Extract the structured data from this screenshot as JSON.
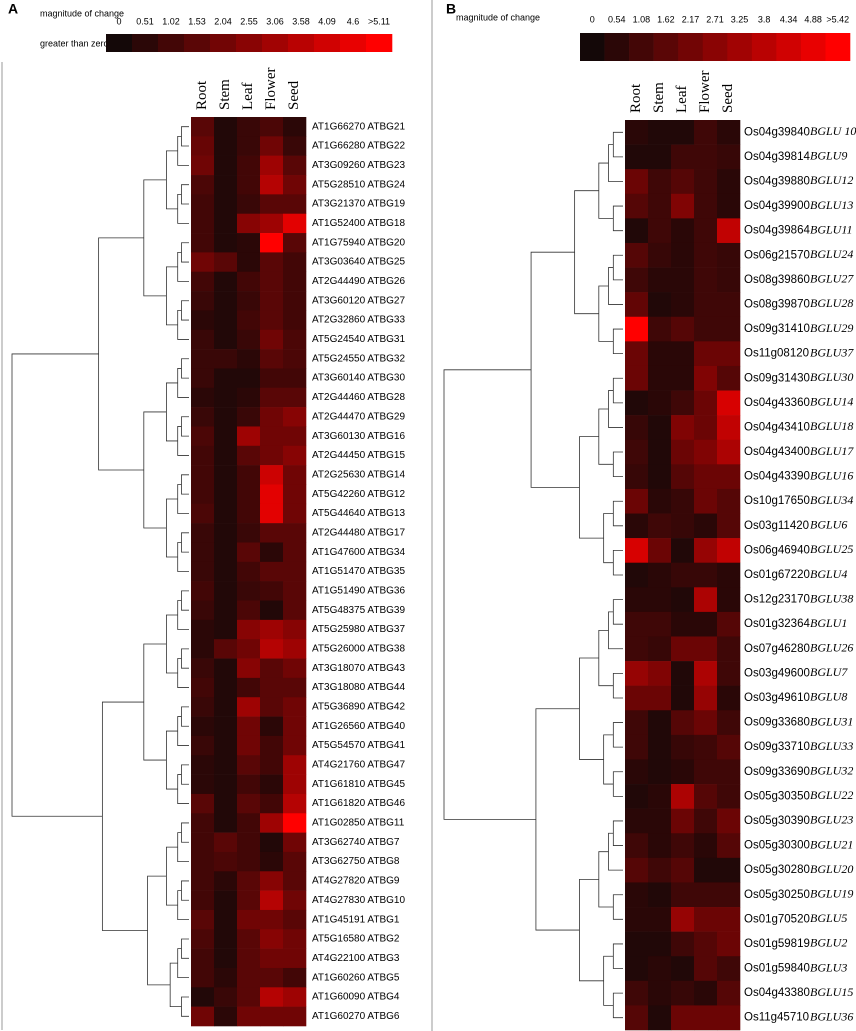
{
  "chart_data": [
    {
      "type": "heatmap",
      "panel_label": "A",
      "colorbar_title": "magnitude of change",
      "colorbar_note": "greater than zero",
      "zlim": [
        0,
        5.11
      ],
      "colorbar_ticks": [
        0,
        0.51,
        1.02,
        1.53,
        2.04,
        2.55,
        3.06,
        3.58,
        4.09,
        4.6,
        {
          "value": 5.11,
          "label": ">5.11"
        }
      ],
      "x": [
        "Root",
        "Stem",
        "Leaf",
        "Flower",
        "Seed"
      ],
      "rows": [
        "AT1G66270 ATBG21",
        "AT1G66280 ATBG22",
        "AT3G09260 ATBG23",
        "AT5G28510 ATBG24",
        "AT3G21370 ATBG19",
        "AT1G52400 ATBG18",
        "AT1G75940 ATBG20",
        "AT3G03640 ATBG25",
        "AT2G44490 ATBG26",
        "AT3G60120 ATBG27",
        "AT2G32860 ATBG33",
        "AT5G24540 ATBG31",
        "AT5G24550 ATBG32",
        "AT3G60140 ATBG30",
        "AT2G44460 ATBG28",
        "AT2G44470 ATBG29",
        "AT3G60130 ATBG16",
        "AT2G44450 ATBG15",
        "AT2G25630 ATBG14",
        "AT5G42260 ATBG12",
        "AT5G44640 ATBG13",
        "AT2G44480 ATBG17",
        "AT1G47600 ATBG34",
        "AT1G51470 ATBG35",
        "AT1G51490 ATBG36",
        "AT5G48375 ATBG39",
        "AT5G25980 ATBG37",
        "AT5G26000 ATBG38",
        "AT3G18070 ATBG43",
        "AT3G18080 ATBG44",
        "AT5G36890 ATBG42",
        "AT1G26560 ATBG40",
        "AT5G54570 ATBG41",
        "AT4G21760 ATBG47",
        "AT1G61810 ATBG45",
        "AT1G61820 ATBG46",
        "AT1G02850 ATBG11",
        "AT3G62740 ATBG7",
        "AT3G62750 ATBG8",
        "AT4G27820 ATBG9",
        "AT4G27830 ATBG10",
        "AT1G45191 ATBG1",
        "AT5G16580 ATBG2",
        "AT4G22100 ATBG3",
        "AT1G60260 ATBG5",
        "AT1G60090 ATBG4",
        "AT1G60270 ATBG6"
      ],
      "values": [
        [
          1.5,
          0.3,
          0.8,
          1.2,
          0.5
        ],
        [
          1.8,
          0.3,
          0.8,
          2,
          0.8
        ],
        [
          2,
          0.3,
          1,
          3,
          1.5
        ],
        [
          1.2,
          0.3,
          1,
          3.5,
          2
        ],
        [
          1,
          0.3,
          0.8,
          1.5,
          1.5
        ],
        [
          1,
          0.3,
          2.5,
          3,
          4.5
        ],
        [
          1,
          0.3,
          0.5,
          5.11,
          1.5
        ],
        [
          2,
          1.5,
          0.5,
          1.5,
          1
        ],
        [
          1,
          0.3,
          1,
          1.5,
          1
        ],
        [
          0.8,
          0.3,
          0.8,
          1.5,
          1
        ],
        [
          0.5,
          0.3,
          1,
          1.5,
          1
        ],
        [
          0.8,
          0.3,
          0.8,
          2,
          1.2
        ],
        [
          0.8,
          0.8,
          0.5,
          1.5,
          1.2
        ],
        [
          0.8,
          0.3,
          0.3,
          1,
          1
        ],
        [
          0.5,
          0.3,
          0.5,
          1.5,
          1.5
        ],
        [
          0.8,
          0.3,
          0.8,
          2,
          2.5
        ],
        [
          1.2,
          0.3,
          3,
          2,
          2
        ],
        [
          1,
          0.3,
          1.5,
          2,
          2.5
        ],
        [
          1,
          0.3,
          1,
          4,
          2
        ],
        [
          1,
          0.3,
          1,
          4.5,
          2
        ],
        [
          1.2,
          0.3,
          1,
          4.5,
          2
        ],
        [
          0.8,
          0.3,
          0.8,
          1.5,
          1.5
        ],
        [
          0.8,
          0.3,
          1.5,
          0.5,
          1.5
        ],
        [
          0.8,
          0.3,
          1,
          1.5,
          1.5
        ],
        [
          1,
          0.3,
          0.8,
          1,
          1.5
        ],
        [
          0.8,
          0.3,
          1.2,
          0.3,
          1.5
        ],
        [
          0.5,
          0.3,
          2.5,
          3,
          2.5
        ],
        [
          0.5,
          1.5,
          2,
          3.5,
          3
        ],
        [
          0.8,
          0.3,
          2.5,
          1.5,
          2
        ],
        [
          1,
          0.3,
          1,
          1.5,
          1.5
        ],
        [
          0.8,
          0.3,
          3,
          1.5,
          2
        ],
        [
          0.5,
          0.3,
          2,
          0.5,
          2
        ],
        [
          0.8,
          0.3,
          2,
          1,
          2
        ],
        [
          0.5,
          0.3,
          1.5,
          1,
          3
        ],
        [
          0.5,
          0.3,
          1,
          0.5,
          3
        ],
        [
          1.5,
          0.3,
          1.5,
          1,
          3.5
        ],
        [
          1,
          0.3,
          1,
          3,
          5.11
        ],
        [
          1,
          1.5,
          1,
          0.3,
          2
        ],
        [
          1,
          1.2,
          1,
          0.5,
          1.5
        ],
        [
          1,
          0.5,
          1.5,
          2.5,
          1.5
        ],
        [
          1,
          0.3,
          1.5,
          3.5,
          2
        ],
        [
          1.5,
          0.3,
          2,
          2,
          1.5
        ],
        [
          1.2,
          0.3,
          1.5,
          2.5,
          2
        ],
        [
          1,
          0.3,
          1.5,
          2,
          2
        ],
        [
          1,
          0.5,
          1.5,
          1.5,
          1
        ],
        [
          0.3,
          0.8,
          1.5,
          3.5,
          3
        ],
        [
          2,
          0.5,
          2,
          2,
          2
        ]
      ]
    },
    {
      "type": "heatmap",
      "panel_label": "B",
      "colorbar_title": "magnitude of change",
      "zlim": [
        0,
        5.42
      ],
      "colorbar_ticks": [
        0,
        0.54,
        1.08,
        1.62,
        2.17,
        2.71,
        3.25,
        3.8,
        4.34,
        4.88,
        {
          "value": 5.42,
          "label": ">5.42"
        }
      ],
      "x": [
        "Root",
        "Stem",
        "Leaf",
        "Flower",
        "Seed"
      ],
      "row_ids": [
        "Os04g39840",
        "Os04g39814",
        "Os04g39880",
        "Os04g39900",
        "Os04g39864",
        "Os06g21570",
        "Os08g39860",
        "Os08g39870",
        "Os09g31410",
        "Os11g08120",
        "Os09g31430",
        "Os04g43360",
        "Os04g43410",
        "Os04g43400",
        "Os04g43390",
        "Os10g17650",
        "Os03g11420",
        "Os06g46940",
        "Os01g67220",
        "Os12g23170",
        "Os01g32364",
        "Os07g46280",
        "Os03g49600",
        "Os03g49610",
        "Os09g33680",
        "Os09g33710",
        "Os09g33690",
        "Os05g30350",
        "Os05g30390",
        "Os05g30300",
        "Os05g30280",
        "Os05g30250",
        "Os01g70520",
        "Os01g59819",
        "Os01g59840",
        "Os04g43380",
        "Os11g45710"
      ],
      "row_names": [
        "BGLU 10",
        "BGLU9",
        "BGLU12",
        "BGLU13",
        "BGLU11",
        "BGLU24",
        "BGLU27",
        "BGLU28",
        "BGLU29",
        "BGLU37",
        "BGLU30",
        "BGLU14",
        "BGLU18",
        "BGLU17",
        "BGLU16",
        "BGLU34",
        "BGLU6",
        "BGLU25",
        "BGLU4",
        "BGLU38",
        "BGLU1",
        "BGLU26",
        "BGLU7",
        "BGLU8",
        "BGLU31",
        "BGLU33",
        "BGLU32",
        "BGLU22",
        "BGLU23",
        "BGLU21",
        "BGLU20",
        "BGLU19",
        "BGLU5",
        "BGLU2",
        "BGLU3",
        "BGLU15",
        "BGLU36"
      ],
      "values": [
        [
          0.5,
          0.3,
          0.3,
          1,
          0.5
        ],
        [
          0.3,
          0.3,
          1,
          1,
          0.8
        ],
        [
          2,
          1,
          1.5,
          1,
          0.5
        ],
        [
          1.5,
          1,
          2.5,
          1,
          0.5
        ],
        [
          0.3,
          1,
          0.5,
          1,
          4
        ],
        [
          1.5,
          0.8,
          0.5,
          1,
          0.8
        ],
        [
          1,
          0.5,
          0.5,
          1,
          0.8
        ],
        [
          1.8,
          0.3,
          0.5,
          1,
          1
        ],
        [
          5.42,
          1,
          1.5,
          1,
          1
        ],
        [
          2,
          0.5,
          0.5,
          2,
          2
        ],
        [
          2,
          0.5,
          0.5,
          2.5,
          1.5
        ],
        [
          0.3,
          0.5,
          1,
          2,
          4.5
        ],
        [
          0.8,
          0.3,
          2.5,
          2,
          4
        ],
        [
          1,
          0.3,
          2,
          2.5,
          3.5
        ],
        [
          0.8,
          0.3,
          1.5,
          2,
          2
        ],
        [
          2,
          0.5,
          0.8,
          2,
          1.5
        ],
        [
          0.5,
          1,
          0.8,
          0.5,
          1.5
        ],
        [
          4.5,
          2,
          0.3,
          3,
          4
        ],
        [
          0.3,
          0.5,
          0.8,
          0.8,
          0.5
        ],
        [
          0.5,
          0.5,
          0.3,
          3.5,
          0.5
        ],
        [
          1,
          1,
          0.5,
          0.5,
          1.5
        ],
        [
          1,
          0.8,
          2,
          2,
          1
        ],
        [
          3,
          2.5,
          0.3,
          3.5,
          1
        ],
        [
          2,
          2,
          0.3,
          3,
          0.5
        ],
        [
          1,
          0.3,
          1.5,
          2,
          1
        ],
        [
          1,
          0.3,
          0.8,
          1,
          1.5
        ],
        [
          0.5,
          0.3,
          0.5,
          1,
          1
        ],
        [
          0.3,
          0.5,
          3.5,
          1.5,
          1
        ],
        [
          0.5,
          0.5,
          2,
          1,
          2
        ],
        [
          1,
          0.5,
          1,
          0.5,
          1.5
        ],
        [
          1.5,
          1,
          1.5,
          0.3,
          0.3
        ],
        [
          0.5,
          0.3,
          1,
          1,
          1
        ],
        [
          0.5,
          0.5,
          3,
          2,
          2
        ],
        [
          0.3,
          0.3,
          1,
          1.5,
          2
        ],
        [
          0.3,
          0.5,
          0.3,
          1.5,
          1
        ],
        [
          1,
          0.5,
          0.8,
          0.5,
          1.5
        ],
        [
          1.5,
          0.3,
          2,
          2,
          2
        ]
      ]
    }
  ]
}
